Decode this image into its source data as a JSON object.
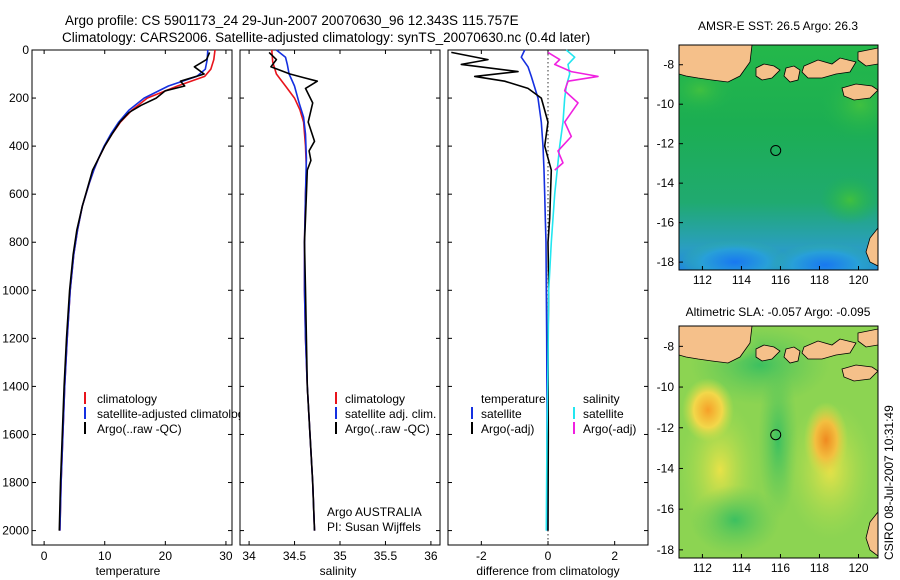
{
  "header": {
    "title_line1": "Argo profile: CS 5901173_24 29-Jun-2007 20070630_96 12.343S 115.757E",
    "title_line2": "Climatology: CARS2006. Satellite-adjusted climatology: synTS_20070630.nc (0.4d later)"
  },
  "side_text": "CSIRO 08-Jul-2007 10:31:49",
  "colors": {
    "climatology": "#e8141c",
    "satellite": "#1530e0",
    "argo": "#000000",
    "sal_satellite": "#22e6f0",
    "sal_argo": "#f020e0",
    "land": "#f5c08a"
  },
  "chart_data": [
    {
      "type": "line",
      "name": "temperature",
      "xlabel": "temperature",
      "ylabel": "",
      "xlim": [
        -2,
        31
      ],
      "ylim": [
        2060,
        0
      ],
      "xticks": [
        "0",
        "10",
        "20",
        "30"
      ],
      "xtick_values": [
        0,
        10,
        20,
        30
      ],
      "yticks": [
        "0",
        "200",
        "400",
        "600",
        "800",
        "1000",
        "1200",
        "1400",
        "1600",
        "1800",
        "2000"
      ],
      "ytick_values": [
        0,
        200,
        400,
        600,
        800,
        1000,
        1200,
        1400,
        1600,
        1800,
        2000
      ],
      "legend": [
        "climatology",
        "satellite-adjusted climatology",
        "Argo(..raw -QC)"
      ],
      "series": [
        {
          "name": "climatology",
          "color": "#e8141c",
          "x": [
            28.2,
            28.0,
            27.5,
            26.5,
            22.0,
            17.0,
            14.5,
            12.6,
            11.2,
            10.0,
            9.0,
            8.2,
            7.5,
            6.3,
            5.5,
            4.9,
            4.3,
            3.8,
            3.4,
            3.1,
            2.8,
            2.6
          ],
          "y": [
            0,
            40,
            80,
            110,
            150,
            200,
            250,
            300,
            350,
            400,
            450,
            500,
            550,
            650,
            750,
            850,
            1000,
            1200,
            1400,
            1600,
            1800,
            2000
          ]
        },
        {
          "name": "satellite-adjusted climatology",
          "color": "#1530e0",
          "x": [
            27.0,
            26.9,
            26.6,
            25.2,
            20.5,
            16.5,
            14.0,
            12.3,
            11.0,
            9.9,
            9.0,
            8.2,
            7.5,
            6.3,
            5.5,
            4.9,
            4.3,
            3.8,
            3.4,
            3.1,
            2.8,
            2.6
          ],
          "y": [
            0,
            40,
            80,
            110,
            150,
            200,
            250,
            300,
            350,
            400,
            450,
            500,
            550,
            650,
            750,
            850,
            1000,
            1200,
            1400,
            1600,
            1800,
            2000
          ]
        },
        {
          "name": "Argo(..raw -QC)",
          "color": "#000000",
          "x": [
            27.3,
            26.8,
            24.8,
            26.4,
            22.5,
            23.2,
            20.0,
            18.5,
            16.0,
            14.0,
            12.5,
            11.2,
            10.0,
            9.0,
            8.0,
            6.3,
            5.4,
            4.8,
            4.2,
            3.7,
            3.3,
            3.0,
            2.7,
            2.5
          ],
          "y": [
            10,
            40,
            70,
            100,
            130,
            150,
            170,
            200,
            230,
            260,
            300,
            350,
            400,
            450,
            500,
            650,
            750,
            850,
            1000,
            1200,
            1400,
            1600,
            1800,
            2000
          ]
        }
      ]
    },
    {
      "type": "line",
      "name": "salinity",
      "xlabel": "salinity",
      "xlim": [
        33.9,
        36.1
      ],
      "ylim": [
        2060,
        0
      ],
      "xticks": [
        "34",
        "34.5",
        "35",
        "35.5",
        "36"
      ],
      "xtick_values": [
        34,
        34.5,
        35,
        35.5,
        36
      ],
      "legend": [
        "climatology",
        "satellite adj. clim.",
        "Argo(..raw -QC)"
      ],
      "annotation": [
        "Argo AUSTRALIA",
        "PI: Susan Wijffels"
      ],
      "series": [
        {
          "name": "climatology",
          "color": "#e8141c",
          "x": [
            34.25,
            34.26,
            34.3,
            34.4,
            34.5,
            34.56,
            34.6,
            34.62,
            34.63,
            34.62,
            34.61,
            34.61,
            34.62,
            34.64,
            34.67,
            34.7,
            34.72
          ],
          "y": [
            0,
            50,
            100,
            150,
            200,
            250,
            300,
            400,
            500,
            600,
            800,
            1000,
            1200,
            1400,
            1600,
            1800,
            2000
          ]
        },
        {
          "name": "satellite adj. clim.",
          "color": "#1530e0",
          "x": [
            34.3,
            34.4,
            34.42,
            34.44,
            34.5,
            34.55,
            34.6,
            34.62,
            34.63,
            34.62,
            34.61,
            34.61,
            34.62,
            34.64,
            34.67,
            34.7,
            34.72
          ],
          "y": [
            0,
            30,
            60,
            100,
            150,
            220,
            280,
            350,
            450,
            600,
            800,
            1000,
            1200,
            1400,
            1600,
            1800,
            2000
          ]
        },
        {
          "name": "Argo(..raw -QC)",
          "color": "#000000",
          "x": [
            34.22,
            34.3,
            34.24,
            34.45,
            34.6,
            34.75,
            34.62,
            34.7,
            34.65,
            34.72,
            34.66,
            34.68,
            34.64,
            34.63,
            34.62,
            34.61,
            34.62,
            34.63,
            34.64,
            34.67,
            34.7,
            34.72
          ],
          "y": [
            10,
            40,
            70,
            100,
            115,
            130,
            160,
            220,
            300,
            380,
            420,
            460,
            500,
            600,
            700,
            800,
            1000,
            1200,
            1400,
            1600,
            1800,
            2000
          ]
        }
      ]
    },
    {
      "type": "line",
      "name": "difference from climatology",
      "xlabel": "difference from climatology",
      "xlim": [
        -3,
        3
      ],
      "ylim": [
        2060,
        0
      ],
      "xticks": [
        "-2",
        "0",
        "2"
      ],
      "xtick_values": [
        -2,
        0,
        2
      ],
      "legend_temperature": {
        "heading": "temperature",
        "satellite": "satellite",
        "argo": "Argo(-adj)"
      },
      "legend_salinity": {
        "heading": "salinity",
        "satellite": "satellite",
        "argo": "Argo(-adj)"
      },
      "series": [
        {
          "name": "temperature satellite",
          "color": "#1530e0",
          "x": [
            -0.7,
            -0.8,
            -0.6,
            -0.5,
            -0.3,
            -0.2,
            -0.15,
            -0.12,
            -0.1,
            -0.08,
            -0.06,
            -0.05,
            -0.04,
            -0.03,
            -0.03,
            -0.03
          ],
          "y": [
            0,
            30,
            70,
            110,
            200,
            300,
            400,
            500,
            600,
            700,
            800,
            1000,
            1200,
            1500,
            1800,
            2000
          ]
        },
        {
          "name": "temperature Argo(-adj)",
          "color": "#000000",
          "x": [
            -2.9,
            -1.8,
            -2.6,
            -0.9,
            -2.2,
            -1.3,
            -0.6,
            -0.2,
            0.0,
            -0.1,
            0.1,
            0.05,
            0.0,
            0.02,
            0.0,
            0.01,
            0.0
          ],
          "y": [
            10,
            40,
            60,
            90,
            110,
            130,
            160,
            200,
            300,
            400,
            500,
            700,
            800,
            1000,
            1200,
            1600,
            2000
          ]
        },
        {
          "name": "salinity satellite",
          "color": "#22e6f0",
          "x": [
            0.55,
            0.8,
            0.6,
            0.65,
            0.55,
            0.5,
            0.45,
            0.35,
            0.2,
            0.1,
            0.02,
            0.0,
            -0.03,
            -0.05
          ],
          "y": [
            0,
            30,
            60,
            100,
            150,
            200,
            300,
            400,
            600,
            800,
            1000,
            1300,
            1600,
            2000
          ]
        },
        {
          "name": "salinity Argo(-adj)",
          "color": "#f020e0",
          "x": [
            0.0,
            0.35,
            0.2,
            0.7,
            1.5,
            0.6,
            0.5,
            0.9,
            0.5,
            0.7,
            0.3,
            0.45,
            0.2
          ],
          "y": [
            10,
            40,
            60,
            90,
            110,
            130,
            170,
            220,
            300,
            360,
            420,
            470,
            500
          ]
        }
      ]
    },
    {
      "type": "heatmap",
      "name": "sst map",
      "title": "AMSR-E SST: 26.5 Argo: 26.3",
      "xlim": [
        110.8,
        121.0
      ],
      "ylim": [
        -18.4,
        -7.0
      ],
      "xticks": [
        "112",
        "114",
        "116",
        "118",
        "120"
      ],
      "xtick_values": [
        112,
        114,
        116,
        118,
        120
      ],
      "yticks": [
        "-8",
        "-10",
        "-12",
        "-14",
        "-16",
        "-18"
      ],
      "ytick_values": [
        -8,
        -10,
        -12,
        -14,
        -16,
        -18
      ],
      "marker": {
        "lon": 115.757,
        "lat": -12.343
      }
    },
    {
      "type": "heatmap",
      "name": "sla map",
      "title": "Altimetric SLA: -0.057 Argo: -0.095",
      "xlim": [
        110.8,
        121.0
      ],
      "ylim": [
        -18.4,
        -7.0
      ],
      "xticks": [
        "112",
        "114",
        "116",
        "118",
        "120"
      ],
      "xtick_values": [
        112,
        114,
        116,
        118,
        120
      ],
      "yticks": [
        "-8",
        "-10",
        "-12",
        "-14",
        "-16",
        "-18"
      ],
      "ytick_values": [
        -8,
        -10,
        -12,
        -14,
        -16,
        -18
      ],
      "marker": {
        "lon": 115.757,
        "lat": -12.343
      }
    }
  ]
}
